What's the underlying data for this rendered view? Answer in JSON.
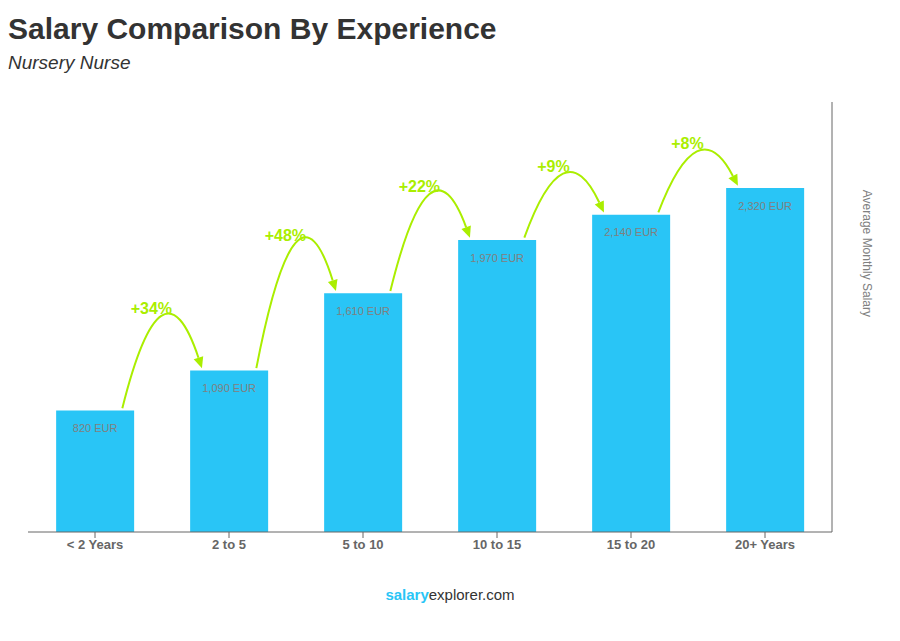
{
  "chart_data": {
    "type": "bar",
    "title": "Salary Comparison By Experience",
    "subtitle": "Nursery Nurse",
    "categories": [
      "< 2 Years",
      "2 to 5",
      "5 to 10",
      "10 to 15",
      "15 to 20",
      "20+ Years"
    ],
    "values": [
      820,
      1090,
      1610,
      1970,
      2140,
      2320
    ],
    "value_labels": [
      "820 EUR",
      "1,090 EUR",
      "1,610 EUR",
      "1,970 EUR",
      "2,140 EUR",
      "2,320 EUR"
    ],
    "data_labels": true,
    "color": "#29C5F6",
    "ylim": [
      0,
      2900
    ],
    "ylabel": "Average Monthly Salary",
    "tick_labels": "x",
    "grid": false,
    "annotations": [
      {
        "text": "+34%",
        "color": "#AAEE00"
      },
      {
        "text": "+48%",
        "color": "#AAEE00"
      },
      {
        "text": "+22%",
        "color": "#AAEE00"
      },
      {
        "text": "+9%",
        "color": "#AAEE00"
      },
      {
        "text": "+8%",
        "color": "#AAEE00"
      }
    ],
    "watermark": [
      {
        "text": "salary",
        "color": "#29C5F6"
      },
      {
        "text": "explorer.com"
      }
    ]
  }
}
